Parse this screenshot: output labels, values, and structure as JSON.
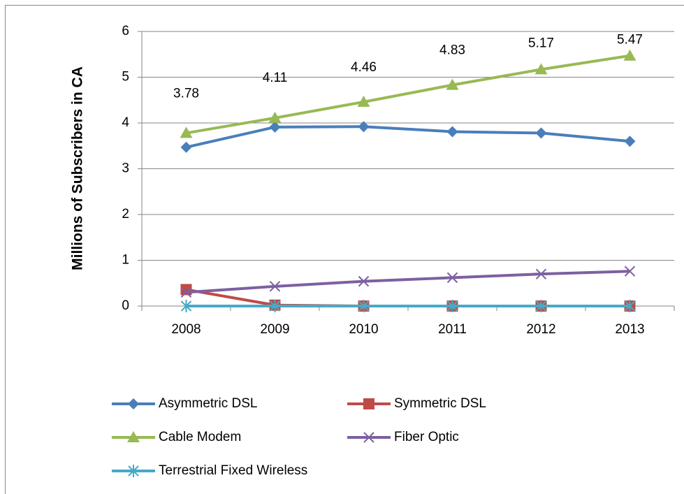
{
  "chart_data": {
    "type": "line",
    "ylabel": "Millions of Subscribers in CA",
    "categories": [
      "2008",
      "2009",
      "2010",
      "2011",
      "2012",
      "2013"
    ],
    "series": [
      {
        "name": "Asymmetric DSL",
        "color": "#4a7ebb",
        "marker": "diamond",
        "values": [
          3.47,
          3.91,
          3.92,
          3.81,
          3.78,
          3.6
        ]
      },
      {
        "name": "Symmetric DSL",
        "color": "#be4b48",
        "marker": "square",
        "values": [
          0.36,
          0.02,
          0.0,
          0.0,
          0.0,
          0.0
        ]
      },
      {
        "name": "Cable Modem",
        "color": "#98b954",
        "marker": "triangle",
        "values": [
          3.78,
          4.11,
          4.46,
          4.83,
          5.17,
          5.47
        ],
        "data_labels": true
      },
      {
        "name": "Fiber Optic",
        "color": "#7d60a0",
        "marker": "x",
        "values": [
          0.3,
          0.43,
          0.54,
          0.62,
          0.7,
          0.76
        ]
      },
      {
        "name": "Terrestrial Fixed Wireless",
        "color": "#46aac5",
        "marker": "star",
        "values": [
          0,
          0,
          0,
          0,
          0,
          0
        ]
      }
    ],
    "ylim": [
      0,
      6
    ],
    "yticks": [
      0,
      1,
      2,
      3,
      4,
      5,
      6
    ],
    "grid": true,
    "legend": "bottom"
  }
}
